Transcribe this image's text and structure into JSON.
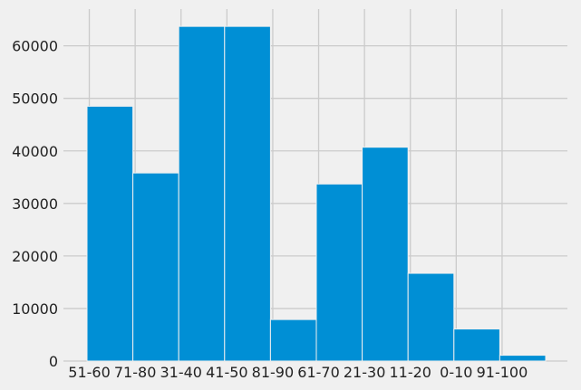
{
  "chart_data": {
    "type": "bar",
    "title": "",
    "xlabel": "",
    "ylabel": "",
    "categories": [
      "51-60",
      "71-80",
      "31-40",
      "41-50",
      "81-90",
      "61-70",
      "21-30",
      "11-20",
      "0-10",
      "91-100"
    ],
    "values": [
      48500,
      35800,
      63700,
      63700,
      7900,
      33700,
      40700,
      16700,
      6100,
      1100
    ],
    "ylim": [
      0,
      67000
    ],
    "yticks": [
      0,
      10000,
      20000,
      30000,
      40000,
      50000,
      60000
    ],
    "ytick_labels": [
      "0",
      "10000",
      "20000",
      "30000",
      "40000",
      "50000",
      "60000"
    ],
    "grid": true,
    "style": "histogram",
    "colors": {
      "bar": "#008fd5",
      "background": "#f0f0f0",
      "grid": "#cbcbcb",
      "text": "#222222"
    }
  }
}
